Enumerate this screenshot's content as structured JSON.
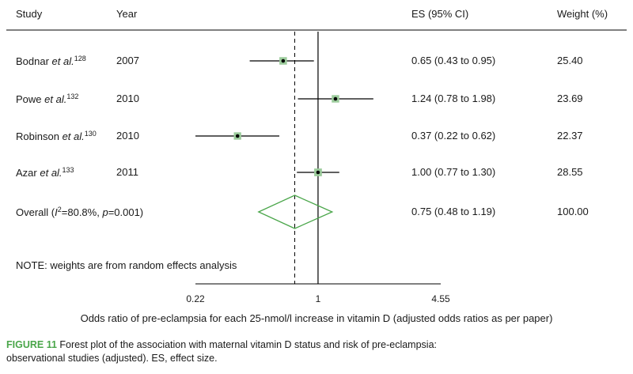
{
  "headers": {
    "study": "Study",
    "year": "Year",
    "es": "ES (95% CI)",
    "weight": "Weight (%)"
  },
  "rows": [
    {
      "author": "Bodnar",
      "etal": "et al.",
      "ref": "128",
      "year": "2007",
      "es_text": "0.65 (0.43 to 0.95)",
      "weight": "25.40"
    },
    {
      "author": "Powe",
      "etal": "et al.",
      "ref": "132",
      "year": "2010",
      "es_text": "1.24 (0.78 to 1.98)",
      "weight": "23.69"
    },
    {
      "author": "Robinson",
      "etal": "et al.",
      "ref": "130",
      "year": "2010",
      "es_text": "0.37 (0.22 to 0.62)",
      "weight": "22.37"
    },
    {
      "author": "Azar",
      "etal": "et al.",
      "ref": "133",
      "year": "2011",
      "es_text": "1.00 (0.77 to 1.30)",
      "weight": "28.55"
    }
  ],
  "overall": {
    "label_prefix": "Overall (",
    "i2_symbol": "I",
    "i2_sup": "2",
    "i2_value": "=80.8%, ",
    "p_symbol": "p",
    "p_value": "=0.001)",
    "es_text": "0.75 (0.48 to 1.19)",
    "weight": "100.00"
  },
  "note": "NOTE: weights are from random effects analysis",
  "caption": {
    "label": "FIGURE 11",
    "line1": "Forest plot of the association with maternal vitamin D status and risk of pre-eclampsia:",
    "line2": "observational studies (adjusted). ES, effect size."
  },
  "chart_data": {
    "type": "forest",
    "scale": "log",
    "xlim": [
      0.22,
      4.55
    ],
    "ticks": [
      {
        "value": 0.22,
        "label": "0.22"
      },
      {
        "value": 1,
        "label": "1"
      },
      {
        "value": 4.55,
        "label": "4.55"
      }
    ],
    "xlabel": "Odds ratio of pre-eclampsia for each 25-nmol/l increase in vitamin D (adjusted odds ratios as per paper)",
    "null_line": 1,
    "overall_line": 0.75,
    "studies": [
      {
        "name": "Bodnar et al.",
        "es": 0.65,
        "lo": 0.43,
        "hi": 0.95,
        "weight": 25.4
      },
      {
        "name": "Powe et al.",
        "es": 1.24,
        "lo": 0.78,
        "hi": 1.98,
        "weight": 23.69
      },
      {
        "name": "Robinson et al.",
        "es": 0.37,
        "lo": 0.22,
        "hi": 0.62,
        "weight": 22.37
      },
      {
        "name": "Azar et al.",
        "es": 1.0,
        "lo": 0.77,
        "hi": 1.3,
        "weight": 28.55
      }
    ],
    "overall": {
      "es": 0.75,
      "lo": 0.48,
      "hi": 1.19,
      "weight": 100.0
    },
    "colors": {
      "diamond": "#4aa64a",
      "marker_box": "#9ccc9c",
      "line": "#000000",
      "caption_label": "#4aa64a"
    }
  }
}
